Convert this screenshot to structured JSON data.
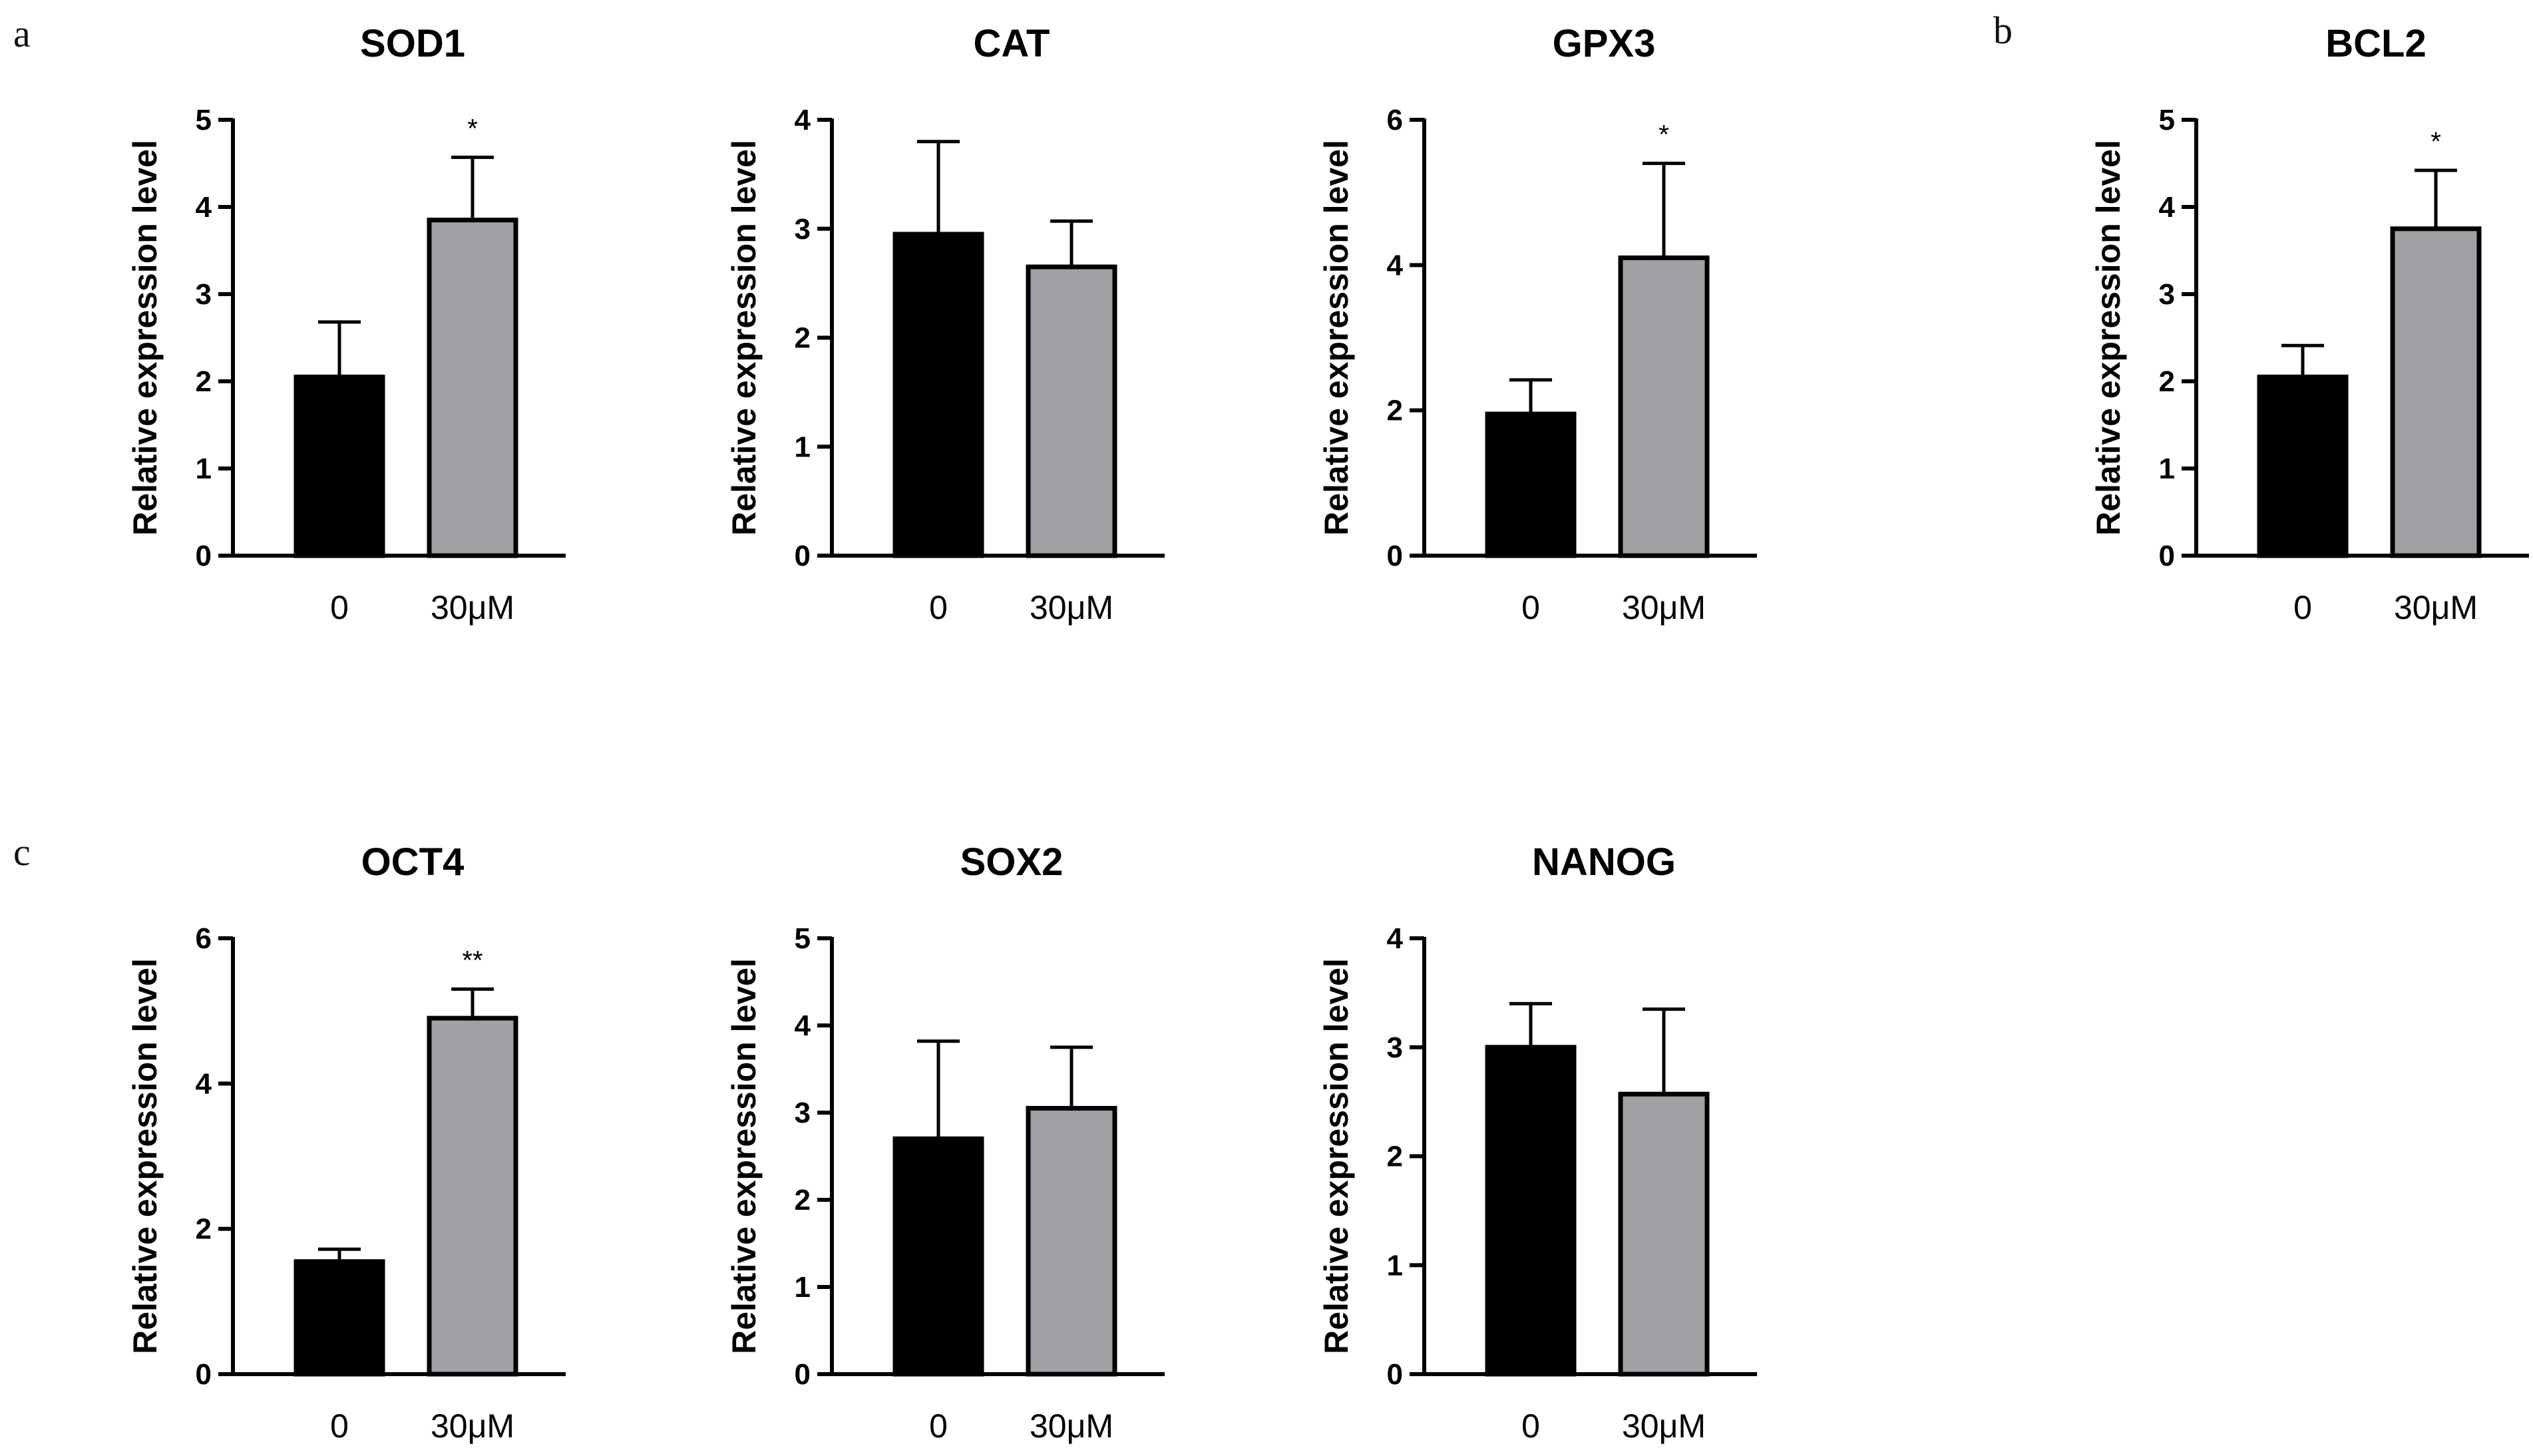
{
  "panel_letters": {
    "a": "a",
    "b": "b",
    "c": "c"
  },
  "colors": {
    "control_bar": "#000000",
    "treated_bar": "#a0a0a5",
    "axis": "#000000"
  },
  "chart_data": [
    {
      "type": "bar",
      "title": "SOD1",
      "categories": [
        "0",
        "30μM"
      ],
      "values": [
        2.05,
        3.85
      ],
      "errors": [
        0.63,
        0.72
      ],
      "significance": [
        "",
        "*"
      ],
      "ylabel": "Relative expression level",
      "xlabel": "",
      "ylim": [
        0,
        5
      ],
      "yticks": [
        0,
        1,
        2,
        3,
        4,
        5
      ],
      "ytick_labels": [
        "0",
        "1",
        "2",
        "3",
        "4",
        "5"
      ],
      "grid": false
    },
    {
      "type": "bar",
      "title": "CAT",
      "categories": [
        "0",
        "30μM"
      ],
      "values": [
        2.95,
        2.65
      ],
      "errors": [
        0.85,
        0.42
      ],
      "significance": [
        "",
        ""
      ],
      "ylabel": "Relative expression level",
      "xlabel": "",
      "ylim": [
        0,
        4
      ],
      "yticks": [
        0,
        1,
        2,
        3,
        4
      ],
      "ytick_labels": [
        "0",
        "1",
        "2",
        "3",
        "4"
      ],
      "grid": false
    },
    {
      "type": "bar",
      "title": "GPX3",
      "categories": [
        "0",
        "30μM"
      ],
      "values": [
        1.95,
        4.1
      ],
      "errors": [
        0.47,
        1.3
      ],
      "significance": [
        "",
        "*"
      ],
      "ylabel": "Relative expression level",
      "xlabel": "",
      "ylim": [
        0,
        6
      ],
      "yticks": [
        0,
        2,
        4,
        6
      ],
      "ytick_labels": [
        "0",
        "2",
        "4",
        "6"
      ],
      "grid": false
    },
    {
      "type": "bar",
      "title": "BCL2",
      "categories": [
        "0",
        "30μM"
      ],
      "values": [
        2.05,
        3.75
      ],
      "errors": [
        0.36,
        0.67
      ],
      "significance": [
        "",
        "*"
      ],
      "ylabel": "Relative expression level",
      "xlabel": "",
      "ylim": [
        0,
        5
      ],
      "yticks": [
        0,
        1,
        2,
        3,
        4,
        5
      ],
      "ytick_labels": [
        "0",
        "1",
        "2",
        "3",
        "4",
        "5"
      ],
      "grid": false
    },
    {
      "type": "bar",
      "title": "OCT4",
      "categories": [
        "0",
        "30μM"
      ],
      "values": [
        1.55,
        4.9
      ],
      "errors": [
        0.17,
        0.4
      ],
      "significance": [
        "",
        "**"
      ],
      "ylabel": "Relative expression level",
      "xlabel": "",
      "ylim": [
        0,
        6
      ],
      "yticks": [
        0,
        2,
        4,
        6
      ],
      "ytick_labels": [
        "0",
        "2",
        "4",
        "6"
      ],
      "grid": false
    },
    {
      "type": "bar",
      "title": "SOX2",
      "categories": [
        "0",
        "30μM"
      ],
      "values": [
        2.7,
        3.05
      ],
      "errors": [
        1.12,
        0.7
      ],
      "significance": [
        "",
        ""
      ],
      "ylabel": "Relative expression level",
      "xlabel": "",
      "ylim": [
        0,
        5
      ],
      "yticks": [
        0,
        1,
        2,
        3,
        4,
        5
      ],
      "ytick_labels": [
        "0",
        "1",
        "2",
        "3",
        "4",
        "5"
      ],
      "grid": false
    },
    {
      "type": "bar",
      "title": "NANOG",
      "categories": [
        "0",
        "30μM"
      ],
      "values": [
        3.0,
        2.57
      ],
      "errors": [
        0.4,
        0.78
      ],
      "significance": [
        "",
        ""
      ],
      "ylabel": "Relative expression level",
      "xlabel": "",
      "ylim": [
        0,
        4
      ],
      "yticks": [
        0,
        1,
        2,
        3,
        4
      ],
      "ytick_labels": [
        "0",
        "1",
        "2",
        "3",
        "4"
      ],
      "grid": false
    }
  ]
}
